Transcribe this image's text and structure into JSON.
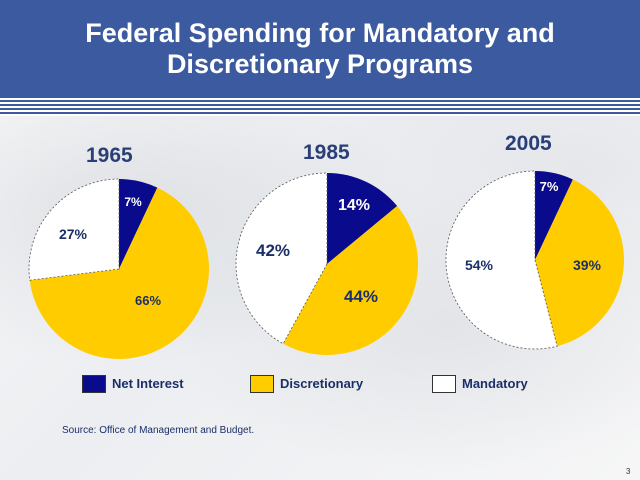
{
  "title_line1": "Federal Spending for Mandatory and",
  "title_line2": "Discretionary Programs",
  "colors": {
    "net_interest": "#0a0a8c",
    "discretionary": "#ffcc00",
    "mandatory": "#ffffff",
    "header": "#3c5aa0"
  },
  "chart_data": [
    {
      "type": "pie",
      "title": "1965",
      "labels": [
        "Net Interest",
        "Discretionary",
        "Mandatory"
      ],
      "values": [
        7,
        66,
        27
      ],
      "value_labels": [
        "7%",
        "66%",
        "27%"
      ]
    },
    {
      "type": "pie",
      "title": "1985",
      "labels": [
        "Net Interest",
        "Discretionary",
        "Mandatory"
      ],
      "values": [
        14,
        44,
        42
      ],
      "value_labels": [
        "14%",
        "44%",
        "42%"
      ]
    },
    {
      "type": "pie",
      "title": "2005",
      "labels": [
        "Net Interest",
        "Discretionary",
        "Mandatory"
      ],
      "values": [
        7,
        39,
        54
      ],
      "value_labels": [
        "7%",
        "39%",
        "54%"
      ]
    }
  ],
  "legend": [
    {
      "label": "Net Interest",
      "color_key": "net_interest"
    },
    {
      "label": "Discretionary",
      "color_key": "discretionary"
    },
    {
      "label": "Mandatory",
      "color_key": "mandatory"
    }
  ],
  "source": "Source: Office of Management and Budget.",
  "page_number": "3"
}
